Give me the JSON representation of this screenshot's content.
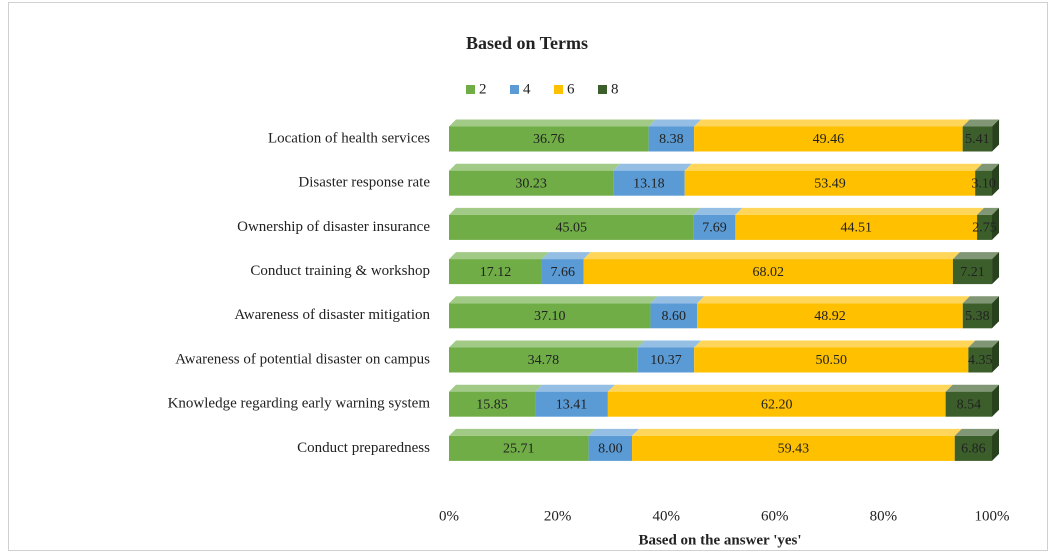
{
  "chart_data": {
    "type": "stacked_bar_horizontal",
    "title": "Based on Terms",
    "x_label": "Based on the answer 'yes'",
    "categories": [
      "Location of health services",
      "Disaster response rate",
      "Ownership of disaster insurance",
      "Conduct training & workshop",
      "Awareness of disaster mitigation",
      "Awareness of potential disaster on campus",
      "Knowledge regarding early warning system",
      "Conduct preparedness"
    ],
    "series": [
      {
        "name": "2",
        "color": "#70ad47",
        "values": [
          36.76,
          30.23,
          45.05,
          17.12,
          37.1,
          34.78,
          15.85,
          25.71
        ],
        "value_labels": [
          "36.76",
          "30.23",
          "45.05",
          "17.12",
          "37.10",
          "34.78",
          "15.85",
          "25.71"
        ]
      },
      {
        "name": "4",
        "color": "#5b9bd5",
        "values": [
          8.38,
          13.18,
          7.69,
          7.66,
          8.6,
          10.37,
          13.41,
          8.0
        ],
        "value_labels": [
          "8.38",
          "13.18",
          "7.69",
          "7.66",
          "8.60",
          "10.37",
          "13.41",
          "8.00"
        ]
      },
      {
        "name": "6",
        "color": "#ffc000",
        "values": [
          49.46,
          53.49,
          44.51,
          68.02,
          48.92,
          50.5,
          62.2,
          59.43
        ],
        "value_labels": [
          "49.46",
          "53.49",
          "44.51",
          "68.02",
          "48.92",
          "50.50",
          "62.20",
          "59.43"
        ]
      },
      {
        "name": "8",
        "color": "#3b5e2b",
        "values": [
          5.41,
          3.1,
          2.75,
          7.21,
          5.38,
          4.35,
          8.54,
          6.86
        ],
        "value_labels": [
          "5.41",
          "3.10",
          "2.75",
          "7.21",
          "5.38",
          "4.35",
          "8.54",
          "6.86"
        ]
      }
    ],
    "xlim": [
      0,
      100
    ],
    "xticks": [
      {
        "value": 0,
        "label": "0%"
      },
      {
        "value": 20,
        "label": "20%"
      },
      {
        "value": 40,
        "label": "40%"
      },
      {
        "value": 60,
        "label": "60%"
      },
      {
        "value": 80,
        "label": "80%"
      },
      {
        "value": 100,
        "label": "100%"
      }
    ],
    "legend": "top"
  }
}
